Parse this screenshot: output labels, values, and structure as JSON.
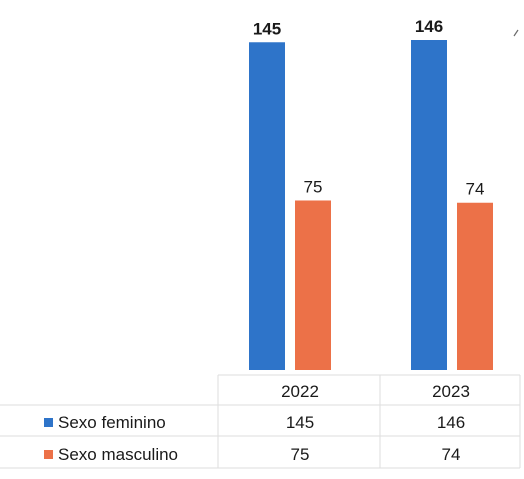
{
  "chart_data": {
    "type": "bar",
    "categories": [
      "2022",
      "2023"
    ],
    "series": [
      {
        "name": "Sexo feminino",
        "values": [
          145,
          146
        ],
        "color": "#2e74c9"
      },
      {
        "name": "Sexo masculino",
        "values": [
          75,
          74
        ],
        "color": "#ec7148"
      }
    ],
    "ylim": [
      0,
      146
    ],
    "grid": false,
    "legend": "data-table",
    "data_table": {
      "rows": [
        {
          "label": "Sexo feminino",
          "values": [
            "145",
            "146"
          ]
        },
        {
          "label": "Sexo masculino",
          "values": [
            "75",
            "74"
          ]
        }
      ]
    }
  }
}
